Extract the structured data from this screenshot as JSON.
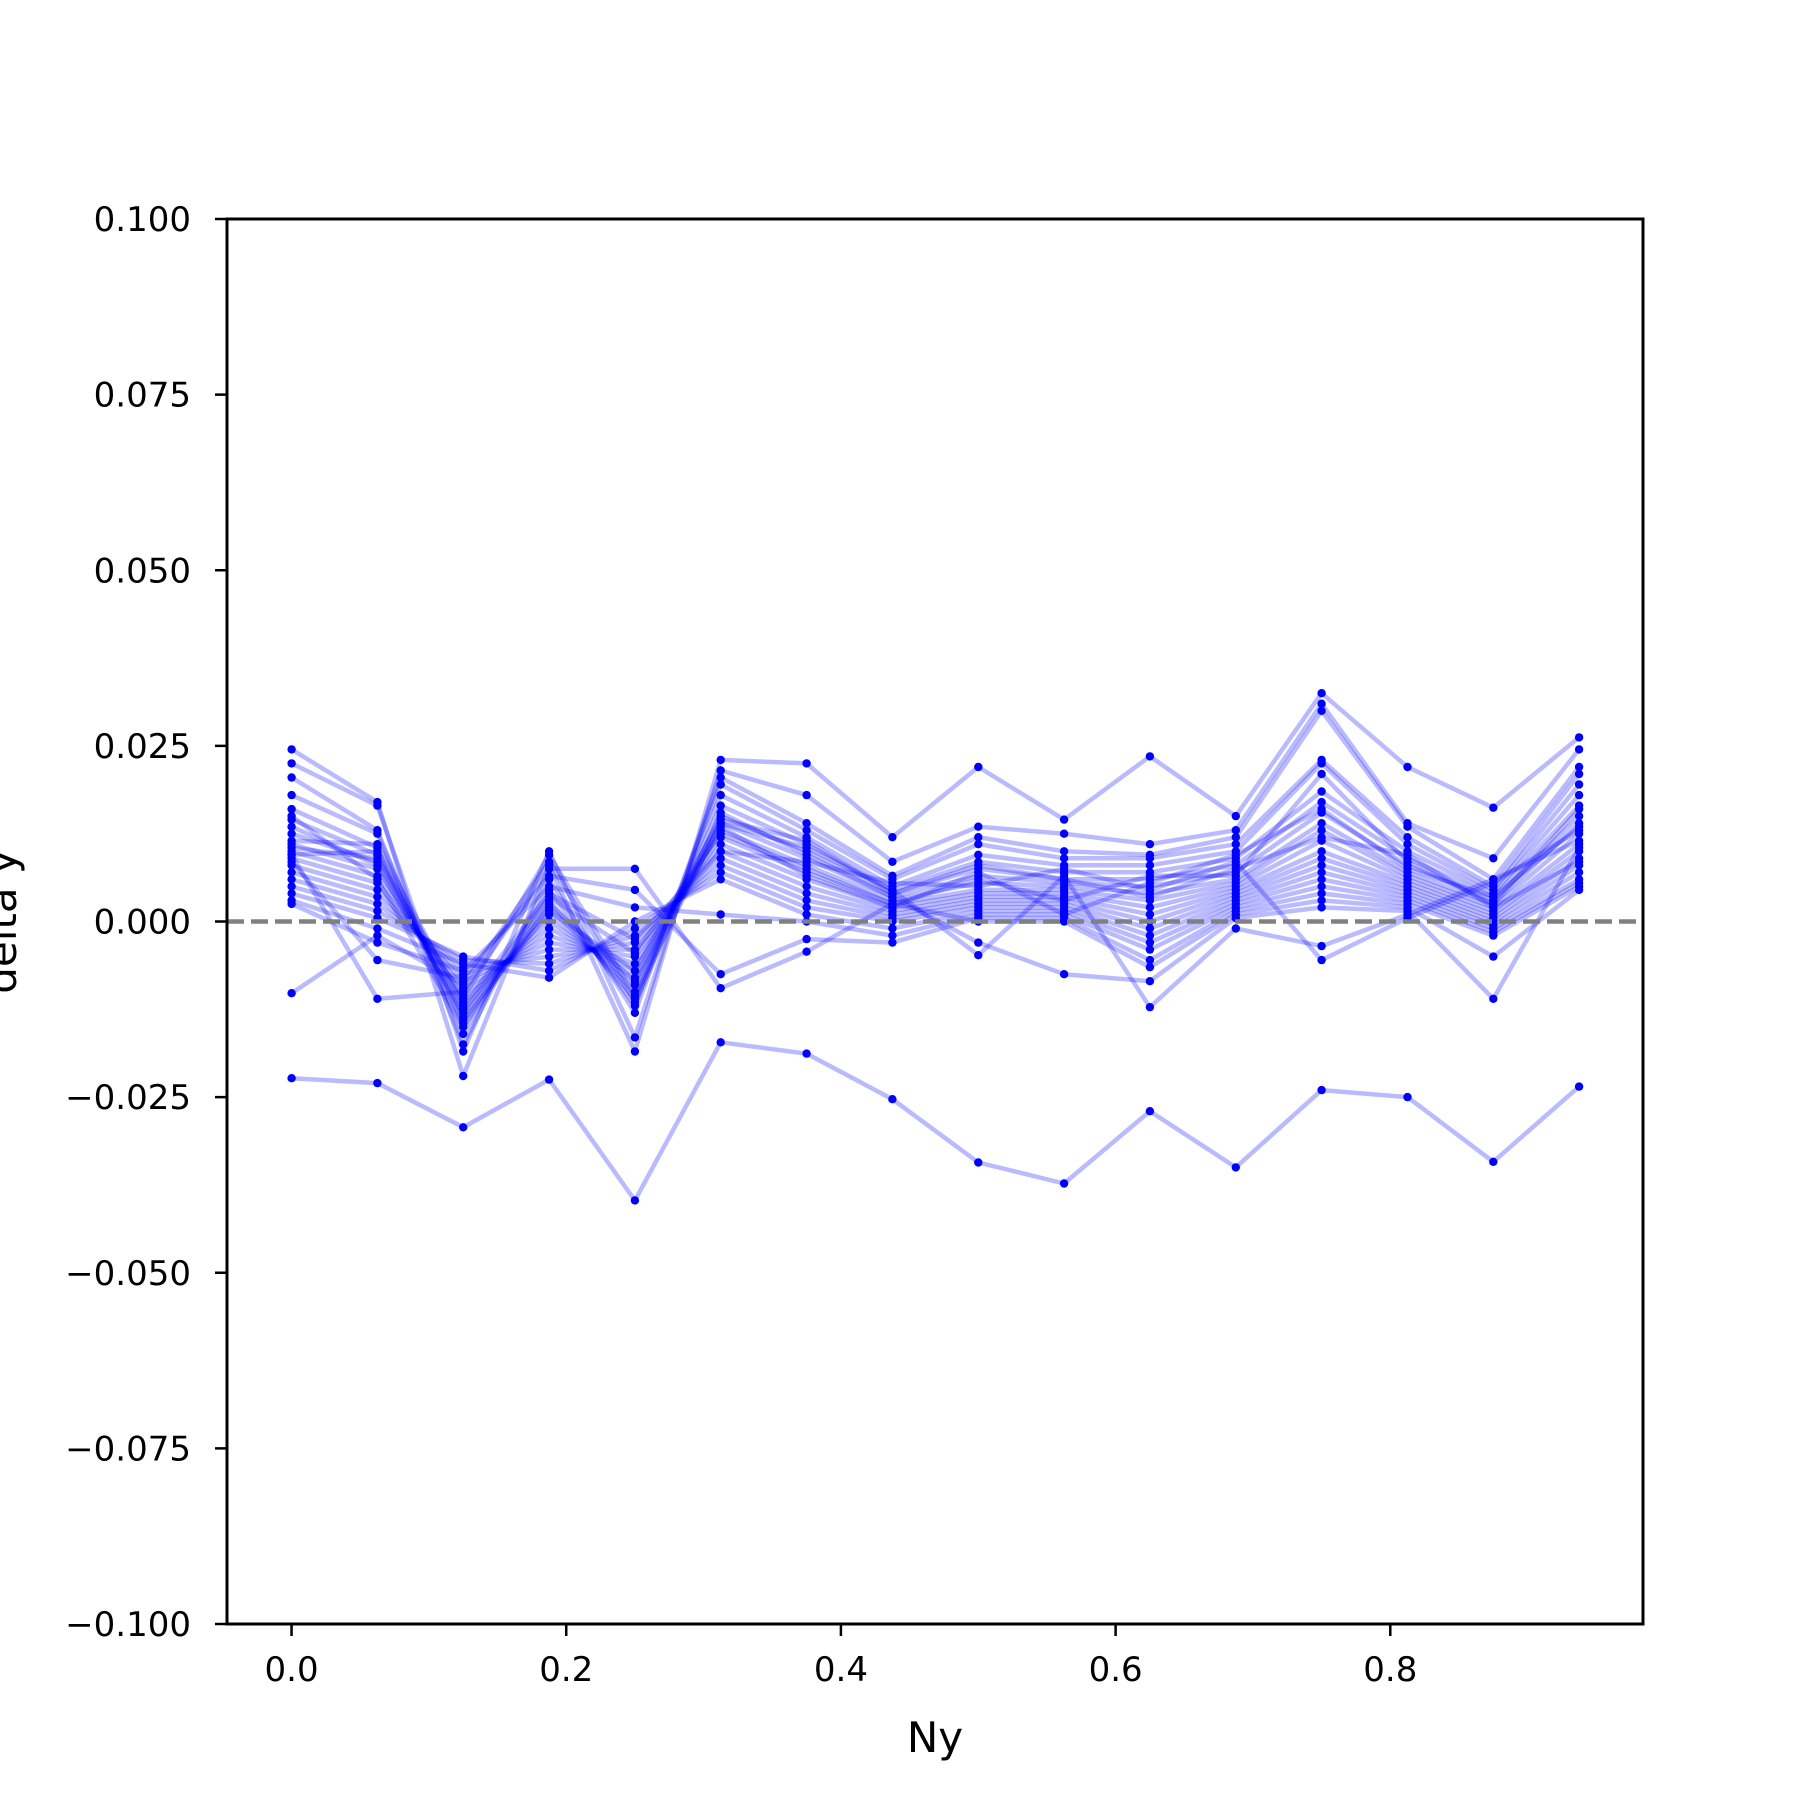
{
  "chart_data": {
    "type": "line",
    "title": "",
    "xlabel": "Ny",
    "ylabel": "delta y",
    "xlim": [
      -0.047,
      0.984
    ],
    "ylim": [
      -0.1,
      0.1
    ],
    "xticks": [
      0.0,
      0.2,
      0.4,
      0.6,
      0.8
    ],
    "xtick_labels": [
      "0.0",
      "0.2",
      "0.4",
      "0.6",
      "0.8"
    ],
    "yticks": [
      0.1,
      0.075,
      0.05,
      0.025,
      0.0,
      -0.025,
      -0.05,
      -0.075,
      -0.1
    ],
    "ytick_labels": [
      "0.100",
      "0.075",
      "0.050",
      "0.025",
      "0.000",
      "−0.025",
      "−0.050",
      "−0.075",
      "−0.100"
    ],
    "grid": false,
    "legend": "none",
    "reference_line": {
      "y": 0.0,
      "style": "dashed",
      "color": "#808080"
    },
    "colors": {
      "series": "#0000ff",
      "series_line_opacity": 0.27,
      "reference": "#808080"
    },
    "x": [
      0.0,
      0.0625,
      0.125,
      0.1875,
      0.25,
      0.3125,
      0.375,
      0.4375,
      0.5,
      0.5625,
      0.625,
      0.6875,
      0.75,
      0.8125,
      0.875,
      0.9375
    ],
    "series": [
      {
        "values": [
          -0.0223,
          -0.023,
          -0.0293,
          -0.0225,
          -0.0397,
          -0.0172,
          -0.0188,
          -0.0253,
          -0.0343,
          -0.0373,
          -0.027,
          -0.035,
          -0.024,
          -0.025,
          -0.0342,
          -0.0235
        ]
      },
      {
        "values": [
          0.0245,
          0.017,
          -0.022,
          0.008,
          -0.0185,
          0.023,
          0.0225,
          0.012,
          0.022,
          0.0145,
          0.0235,
          0.015,
          0.0325,
          0.022,
          0.0162,
          0.0262
        ]
      },
      {
        "values": [
          0.0225,
          0.0165,
          -0.0185,
          0.01,
          -0.0165,
          0.0215,
          0.018,
          0.0085,
          0.0135,
          0.0125,
          0.011,
          0.013,
          0.031,
          0.014,
          0.009,
          0.0245
        ]
      },
      {
        "values": [
          0.0205,
          0.013,
          -0.0175,
          0.006,
          -0.013,
          0.0205,
          0.014,
          0.0065,
          0.012,
          0.01,
          0.0095,
          0.012,
          0.03,
          0.0135,
          0.006,
          0.022
        ]
      },
      {
        "values": [
          0.018,
          0.0125,
          -0.016,
          0.0045,
          -0.012,
          0.0195,
          0.013,
          0.006,
          0.011,
          0.009,
          0.009,
          0.011,
          0.023,
          0.012,
          0.005,
          0.021
        ]
      },
      {
        "values": [
          0.016,
          0.0105,
          -0.0145,
          0.003,
          -0.011,
          0.018,
          0.012,
          0.005,
          0.0095,
          0.008,
          0.008,
          0.01,
          0.0225,
          0.011,
          0.0045,
          0.0195
        ]
      },
      {
        "values": [
          0.0145,
          0.0095,
          -0.0135,
          0.002,
          -0.01,
          0.0165,
          0.011,
          0.0045,
          0.0085,
          0.007,
          0.007,
          0.009,
          0.0185,
          0.01,
          0.004,
          0.018
        ]
      },
      {
        "values": [
          0.0125,
          0.0085,
          -0.0125,
          0.001,
          -0.009,
          0.015,
          0.01,
          0.004,
          0.0075,
          0.006,
          0.006,
          0.008,
          0.017,
          0.009,
          0.0035,
          0.0165
        ]
      },
      {
        "values": [
          0.011,
          0.0075,
          -0.0115,
          0.0,
          -0.008,
          0.014,
          0.009,
          0.0035,
          0.0065,
          0.0055,
          0.005,
          0.007,
          0.0155,
          0.008,
          0.003,
          0.015
        ]
      },
      {
        "values": [
          0.01,
          0.0065,
          -0.0105,
          -0.001,
          -0.007,
          0.013,
          0.008,
          0.003,
          0.0055,
          0.005,
          0.004,
          0.006,
          0.014,
          0.007,
          0.0025,
          0.014
        ]
      },
      {
        "values": [
          0.009,
          0.0055,
          -0.0095,
          -0.002,
          -0.006,
          0.012,
          0.007,
          0.0025,
          0.0045,
          0.0045,
          0.003,
          0.0055,
          0.013,
          0.0065,
          0.002,
          0.0125
        ]
      },
      {
        "values": [
          0.008,
          0.0045,
          -0.0085,
          -0.003,
          -0.005,
          0.011,
          0.006,
          0.002,
          0.004,
          0.004,
          0.002,
          0.005,
          0.0115,
          0.006,
          0.0015,
          0.011
        ]
      },
      {
        "values": [
          0.007,
          0.0035,
          -0.0075,
          -0.004,
          -0.004,
          0.01,
          0.005,
          0.0015,
          0.0035,
          0.0035,
          0.001,
          0.0045,
          0.01,
          0.0055,
          0.001,
          0.01
        ]
      },
      {
        "values": [
          0.006,
          0.0025,
          -0.0065,
          -0.005,
          -0.003,
          0.009,
          0.004,
          0.001,
          0.003,
          0.003,
          0.0,
          0.004,
          0.009,
          0.005,
          0.0005,
          0.009
        ]
      },
      {
        "values": [
          0.005,
          0.0015,
          -0.0055,
          -0.006,
          -0.002,
          0.008,
          0.003,
          0.0005,
          0.0025,
          0.0025,
          -0.001,
          0.0035,
          0.008,
          0.0045,
          0.0,
          0.008
        ]
      },
      {
        "values": [
          0.004,
          0.0005,
          -0.005,
          -0.007,
          -0.001,
          0.007,
          0.002,
          0.0,
          0.002,
          0.002,
          -0.002,
          0.003,
          0.007,
          0.004,
          -0.0005,
          0.007
        ]
      },
      {
        "values": [
          0.003,
          -0.001,
          -0.006,
          -0.008,
          0.0,
          0.006,
          0.001,
          -0.001,
          0.0015,
          0.0015,
          -0.003,
          0.0025,
          0.006,
          0.0035,
          -0.001,
          0.006
        ]
      },
      {
        "values": [
          0.0025,
          -0.003,
          -0.007,
          0.005,
          0.002,
          0.001,
          0.0,
          -0.002,
          0.001,
          0.001,
          -0.004,
          0.002,
          0.005,
          0.003,
          -0.0015,
          0.0055
        ]
      },
      {
        "values": [
          0.0085,
          -0.0055,
          -0.008,
          0.0065,
          0.0045,
          -0.0075,
          -0.0025,
          -0.003,
          0.0005,
          0.0005,
          -0.0055,
          0.0015,
          0.004,
          0.0025,
          -0.002,
          0.005
        ]
      },
      {
        "values": [
          0.0095,
          -0.011,
          -0.01,
          0.0075,
          0.0075,
          -0.0095,
          -0.0043,
          0.0025,
          0.0,
          0.0,
          -0.0065,
          0.001,
          0.003,
          0.002,
          -0.005,
          0.0045
        ]
      },
      {
        "values": [
          -0.0102,
          -0.002,
          -0.009,
          0.0085,
          -0.0115,
          0.0155,
          0.0095,
          0.0035,
          -0.003,
          -0.0075,
          -0.0085,
          0.0005,
          0.002,
          0.0015,
          -0.011,
          0.0105
        ]
      },
      {
        "values": [
          0.0105,
          0.009,
          -0.011,
          0.0095,
          -0.0105,
          0.014,
          0.0105,
          0.0045,
          -0.0048,
          0.0065,
          -0.0122,
          -0.001,
          -0.0035,
          0.001,
          0.006,
          0.0115
        ]
      },
      {
        "values": [
          0.0115,
          0.011,
          -0.012,
          0.004,
          -0.0025,
          0.01,
          0.0085,
          0.0055,
          0.005,
          0.0075,
          0.0045,
          0.0085,
          -0.0055,
          0.0005,
          0.0055,
          0.013
        ]
      },
      {
        "values": [
          0.0135,
          0.008,
          -0.013,
          0.0035,
          -0.0045,
          0.0125,
          0.0075,
          0.0025,
          0.006,
          0.003,
          0.0065,
          0.0065,
          0.021,
          0.0085,
          0.0025,
          0.016
        ]
      },
      {
        "values": [
          0.015,
          0.006,
          -0.015,
          0.0025,
          -0.0085,
          0.0135,
          0.0065,
          0.002,
          0.007,
          0.001,
          0.0055,
          0.0095,
          0.016,
          0.0075,
          0.0035,
          0.0135
        ]
      },
      {
        "values": [
          0.0095,
          0.01,
          -0.014,
          0.0015,
          -0.007,
          0.0145,
          0.0115,
          0.004,
          0.008,
          0.006,
          0.0035,
          0.0075,
          0.012,
          0.0095,
          0.002,
          0.0085
        ]
      }
    ]
  }
}
